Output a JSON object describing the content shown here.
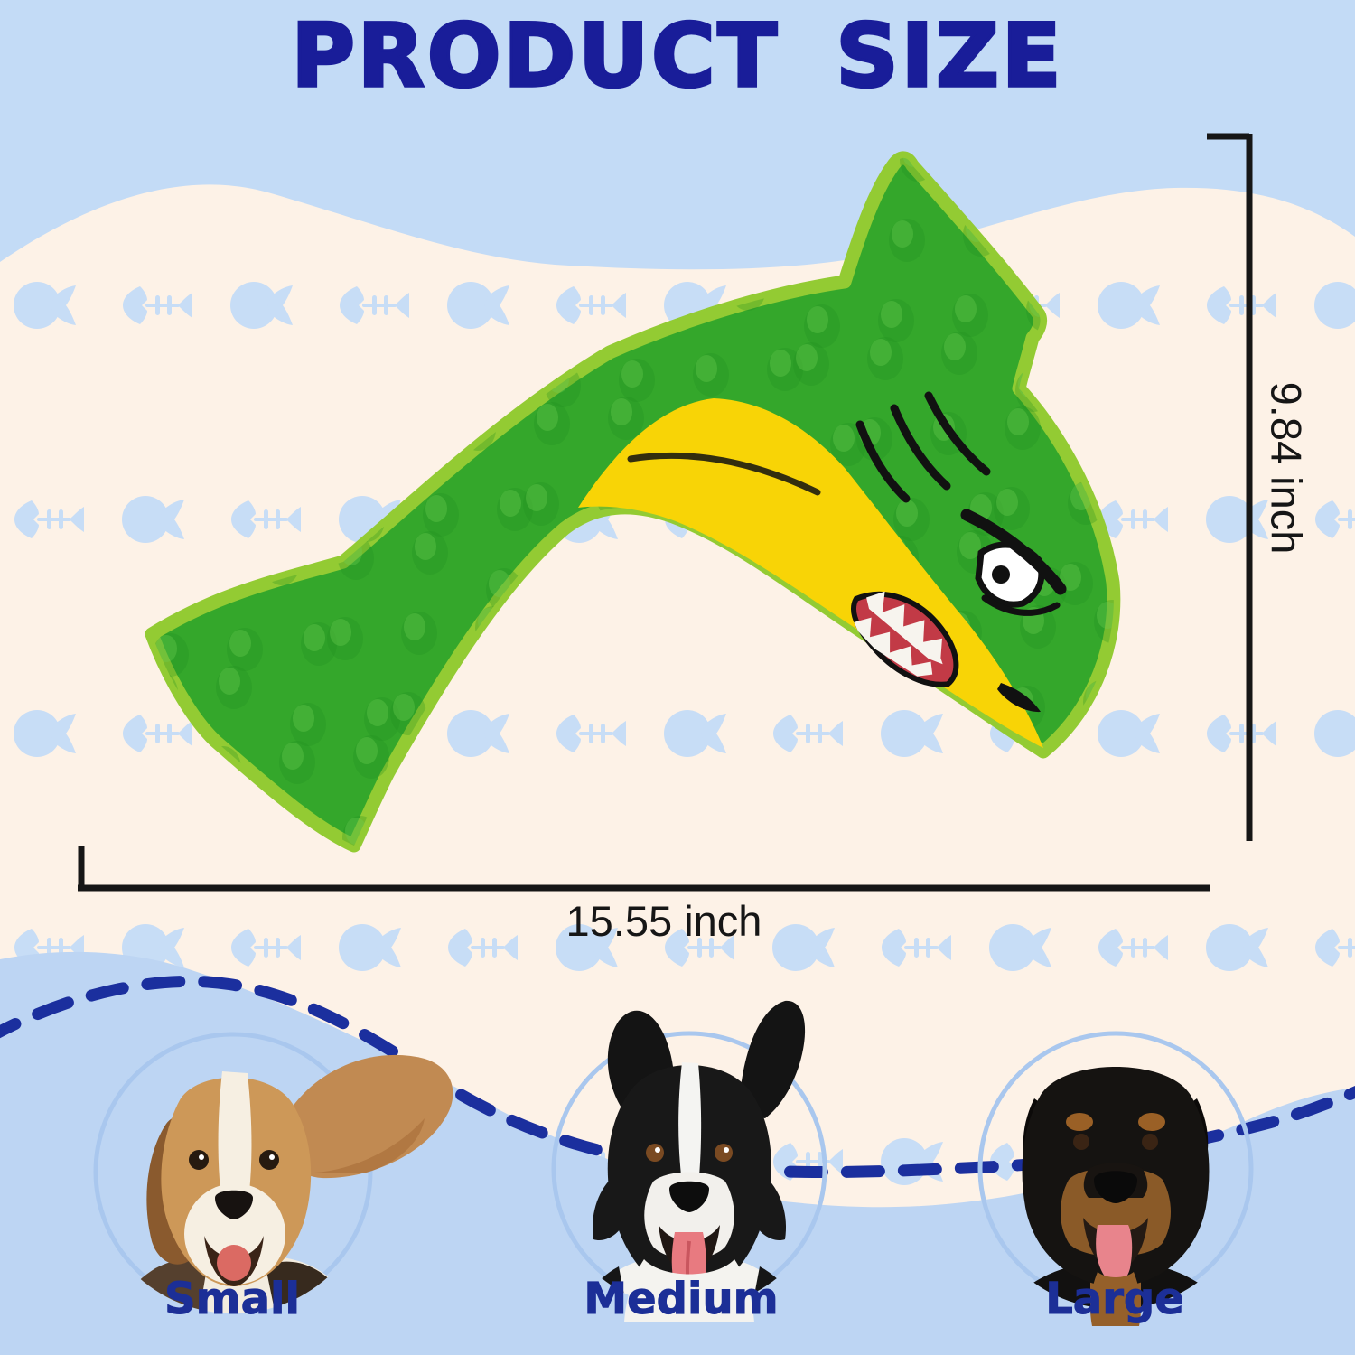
{
  "title": "PRODUCT SIZE",
  "dimensions": {
    "height_label": "9.84 inch",
    "width_label": "15.55 inch"
  },
  "product": {
    "icon": "green-shark-plush-dog-toy",
    "features": [
      "dorsal-fin",
      "tail-fin",
      "pectoral-fin",
      "angry-eye",
      "teeth-mouth",
      "gill-marks"
    ]
  },
  "size_guide": {
    "items": [
      {
        "label": "Small",
        "icon": "beagle-dog-photo"
      },
      {
        "label": "Medium",
        "icon": "border-collie-dog-photo"
      },
      {
        "label": "Large",
        "icon": "rottweiler-dog-photo"
      }
    ]
  },
  "background": {
    "pattern_icons": [
      "fish-icon",
      "fishbone-icon"
    ]
  },
  "colors": {
    "cream": "#fdf2e7",
    "pattern_blue": "#c7ddf6",
    "wave_top_blue": "#c3dbf6",
    "wave_bottom_blue": "#bdd5f3",
    "dashed_navy": "#1b2f9e",
    "title_navy": "#191d99",
    "label_navy": "#1c2f97",
    "dim_black": "#161616",
    "shark_green": "#34a72b",
    "shark_trim": "#93cb33",
    "belly_yellow": "#f8d406",
    "mouth_red": "#c23a46",
    "ring_blue": "#a9c7ee"
  }
}
